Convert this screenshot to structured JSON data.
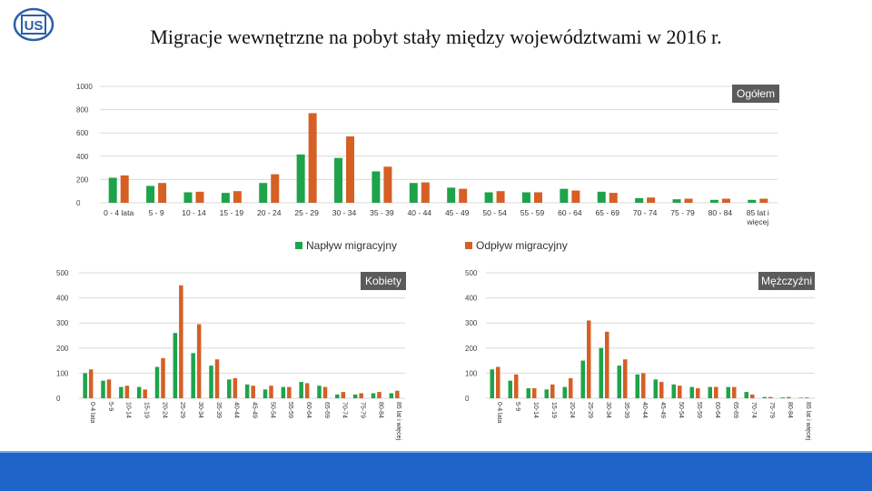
{
  "header": {
    "title": "Migracje wewnętrzne na pobyt stały między województwami w 2016 r.",
    "logo_text": "US"
  },
  "colors": {
    "inflow": "#1ea34a",
    "outflow": "#d65f25",
    "axis": "#d9d9d9",
    "label_bg": "#5b5b5b",
    "footer": "#1f64c8"
  },
  "chart_data": [
    {
      "type": "bar",
      "label": "Ogółem",
      "ylim": [
        0,
        1000
      ],
      "yticks": [
        0,
        200,
        400,
        600,
        800,
        1000
      ],
      "categories": [
        "0 - 4 lata",
        "5 - 9",
        "10 - 14",
        "15 - 19",
        "20 - 24",
        "25 - 29",
        "30 - 34",
        "35 - 39",
        "40 - 44",
        "45 - 49",
        "50 - 54",
        "55 - 59",
        "60 - 64",
        "65 - 69",
        "70 - 74",
        "75 - 79",
        "80 - 84",
        "85 lat i więcej"
      ],
      "series": [
        {
          "name": "Napływ migracyjny",
          "values": [
            215,
            145,
            90,
            85,
            170,
            415,
            385,
            270,
            170,
            130,
            90,
            90,
            120,
            95,
            40,
            30,
            25,
            25
          ]
        },
        {
          "name": "Odpływ migracyjny",
          "values": [
            235,
            170,
            95,
            100,
            245,
            770,
            570,
            310,
            175,
            120,
            100,
            90,
            105,
            85,
            45,
            35,
            35,
            35
          ]
        }
      ],
      "legend": [
        "Napływ migracyjny",
        "Odpływ migracyjny"
      ]
    },
    {
      "type": "bar",
      "label": "Kobiety",
      "ylim": [
        0,
        500
      ],
      "yticks": [
        0,
        100,
        200,
        300,
        400,
        500
      ],
      "categories": [
        "0-4 lata",
        "5-9",
        "10-14",
        "15-19",
        "20-24",
        "25-29",
        "30-34",
        "35-39",
        "40-44",
        "45-49",
        "50-54",
        "55-59",
        "60-64",
        "65-69",
        "70-74",
        "75-79",
        "80-84",
        "85 lat i więcej"
      ],
      "series": [
        {
          "name": "Napływ migracyjny",
          "values": [
            100,
            70,
            45,
            45,
            125,
            260,
            180,
            130,
            75,
            55,
            35,
            45,
            65,
            50,
            15,
            15,
            20,
            20
          ]
        },
        {
          "name": "Odpływ migracyjny",
          "values": [
            115,
            75,
            50,
            35,
            160,
            450,
            295,
            155,
            80,
            50,
            50,
            45,
            60,
            45,
            25,
            20,
            25,
            30
          ]
        }
      ]
    },
    {
      "type": "bar",
      "label": "Mężczyźni",
      "ylim": [
        0,
        500
      ],
      "yticks": [
        0,
        100,
        200,
        300,
        400,
        500
      ],
      "categories": [
        "0-4 lata",
        "5-9",
        "10-14",
        "15-19",
        "20-24",
        "25-29",
        "30-34",
        "35-39",
        "40-44",
        "45-49",
        "50-54",
        "55-59",
        "60-64",
        "65-69",
        "70-74",
        "75-79",
        "80-84",
        "85 lat i więcej"
      ],
      "series": [
        {
          "name": "Napływ migracyjny",
          "values": [
            115,
            70,
            40,
            35,
            45,
            150,
            200,
            130,
            95,
            75,
            55,
            45,
            45,
            45,
            25,
            5,
            3,
            2
          ]
        },
        {
          "name": "Odpływ migracyjny",
          "values": [
            125,
            95,
            40,
            55,
            80,
            310,
            265,
            155,
            100,
            65,
            50,
            40,
            45,
            45,
            15,
            5,
            5,
            3
          ]
        }
      ]
    }
  ]
}
